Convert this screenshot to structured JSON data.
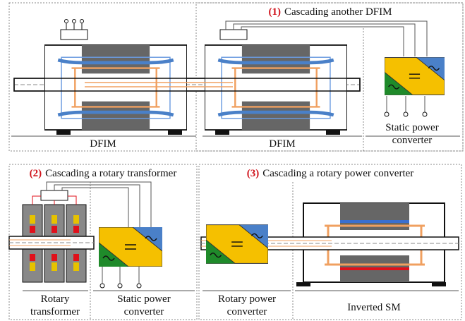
{
  "sections": [
    {
      "number": "(1)",
      "title": "Cascading another DFIM"
    },
    {
      "number": "(2)",
      "title": "Cascading a rotary transformer"
    },
    {
      "number": "(3)",
      "title": "Cascading a rotary power converter"
    }
  ],
  "labels": [
    {
      "lines": [
        "DFIM"
      ]
    },
    {
      "lines": [
        "DFIM"
      ]
    },
    {
      "lines": [
        "Static power",
        "converter"
      ]
    },
    {
      "lines": [
        "Rotary",
        "transformer"
      ]
    },
    {
      "lines": [
        "Static power",
        "converter"
      ]
    },
    {
      "lines": [
        "Rotary power",
        "converter"
      ]
    },
    {
      "lines": [
        "Inverted SM"
      ]
    }
  ]
}
